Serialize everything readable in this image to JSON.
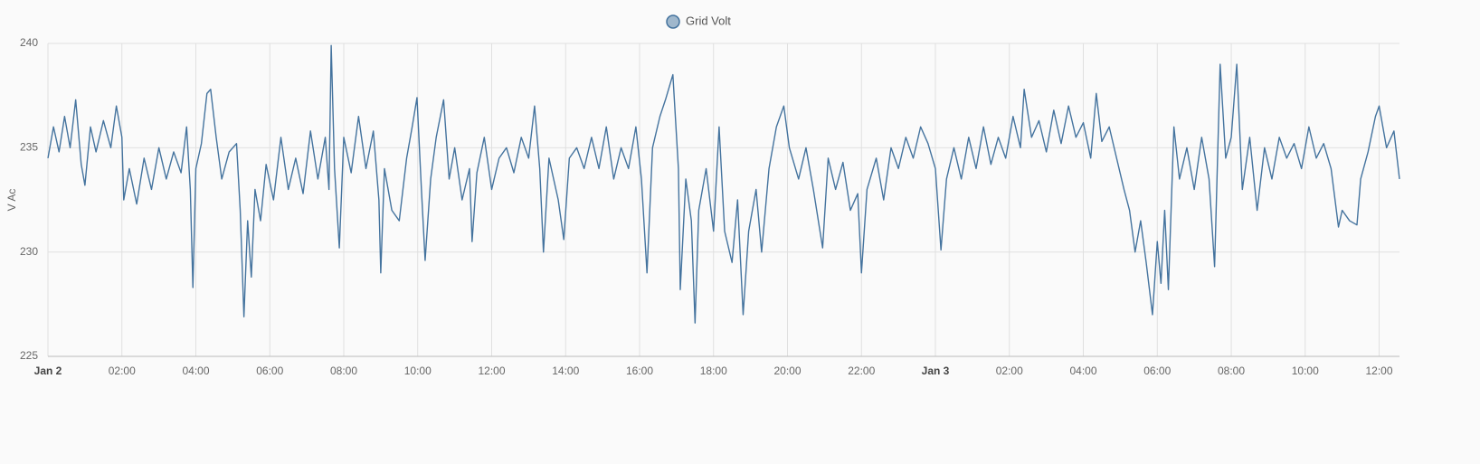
{
  "chart_data": {
    "type": "line",
    "y_label": "V Ac",
    "xlim": [
      0,
      36.55
    ],
    "ylim": [
      225,
      240
    ],
    "yticks": [
      225,
      230,
      235,
      240
    ],
    "xticks": [
      {
        "value": 0,
        "label": "Jan 2"
      },
      {
        "value": 2,
        "label": "02:00"
      },
      {
        "value": 4,
        "label": "04:00"
      },
      {
        "value": 6,
        "label": "06:00"
      },
      {
        "value": 8,
        "label": "08:00"
      },
      {
        "value": 10,
        "label": "10:00"
      },
      {
        "value": 12,
        "label": "12:00"
      },
      {
        "value": 14,
        "label": "14:00"
      },
      {
        "value": 16,
        "label": "16:00"
      },
      {
        "value": 18,
        "label": "18:00"
      },
      {
        "value": 20,
        "label": "20:00"
      },
      {
        "value": 22,
        "label": "22:00"
      },
      {
        "value": 24,
        "label": "Jan 3"
      },
      {
        "value": 26,
        "label": "02:00"
      },
      {
        "value": 28,
        "label": "04:00"
      },
      {
        "value": 30,
        "label": "06:00"
      },
      {
        "value": 32,
        "label": "08:00"
      },
      {
        "value": 34,
        "label": "10:00"
      },
      {
        "value": 36,
        "label": "12:00"
      }
    ],
    "grid": true,
    "legend_position": "top",
    "x": [
      0,
      0.15,
      0.3,
      0.45,
      0.6,
      0.75,
      0.9,
      1.0,
      1.15,
      1.3,
      1.5,
      1.7,
      1.85,
      2.0,
      2.05,
      2.2,
      2.4,
      2.6,
      2.8,
      3.0,
      3.2,
      3.4,
      3.6,
      3.75,
      3.85,
      3.92,
      4.0,
      4.15,
      4.3,
      4.4,
      4.55,
      4.7,
      4.9,
      5.1,
      5.2,
      5.3,
      5.4,
      5.5,
      5.6,
      5.75,
      5.9,
      6.1,
      6.3,
      6.5,
      6.7,
      6.9,
      7.1,
      7.3,
      7.5,
      7.6,
      7.66,
      7.75,
      7.88,
      8.0,
      8.2,
      8.4,
      8.6,
      8.8,
      8.95,
      9.0,
      9.1,
      9.3,
      9.5,
      9.7,
      9.85,
      9.98,
      10.1,
      10.2,
      10.35,
      10.5,
      10.7,
      10.85,
      11.0,
      11.2,
      11.4,
      11.47,
      11.6,
      11.8,
      12.0,
      12.2,
      12.4,
      12.6,
      12.8,
      13.0,
      13.16,
      13.3,
      13.4,
      13.55,
      13.8,
      13.95,
      14.1,
      14.3,
      14.5,
      14.7,
      14.9,
      15.1,
      15.3,
      15.5,
      15.7,
      15.9,
      16.05,
      16.2,
      16.35,
      16.55,
      16.7,
      16.9,
      17.05,
      17.1,
      17.25,
      17.4,
      17.5,
      17.6,
      17.8,
      18.0,
      18.15,
      18.3,
      18.5,
      18.65,
      18.8,
      18.95,
      19.15,
      19.3,
      19.5,
      19.7,
      19.9,
      20.05,
      20.3,
      20.5,
      20.7,
      20.95,
      21.1,
      21.3,
      21.5,
      21.7,
      21.9,
      22.0,
      22.15,
      22.4,
      22.6,
      22.8,
      23.0,
      23.2,
      23.4,
      23.6,
      23.8,
      24.0,
      24.15,
      24.3,
      24.5,
      24.7,
      24.9,
      25.1,
      25.3,
      25.5,
      25.7,
      25.9,
      26.1,
      26.3,
      26.4,
      26.6,
      26.8,
      27.0,
      27.2,
      27.4,
      27.6,
      27.8,
      28.0,
      28.2,
      28.35,
      28.5,
      28.7,
      28.9,
      29.1,
      29.25,
      29.4,
      29.55,
      29.7,
      29.87,
      30.0,
      30.1,
      30.2,
      30.3,
      30.45,
      30.6,
      30.8,
      31.0,
      31.2,
      31.4,
      31.55,
      31.7,
      31.85,
      32.0,
      32.15,
      32.3,
      32.5,
      32.7,
      32.9,
      33.1,
      33.3,
      33.5,
      33.7,
      33.9,
      34.1,
      34.3,
      34.5,
      34.7,
      34.9,
      35.0,
      35.2,
      35.4,
      35.5,
      35.7,
      35.9,
      36.0,
      36.2,
      36.4,
      36.55
    ],
    "series": [
      {
        "name": "Grid Volt",
        "color": "#44739e",
        "values": [
          234.5,
          236,
          234.8,
          236.5,
          235,
          237.3,
          234.2,
          233.2,
          236,
          234.8,
          236.3,
          235,
          237,
          235.5,
          232.5,
          234,
          232.3,
          234.5,
          233,
          235,
          233.5,
          234.8,
          233.8,
          236,
          233,
          228.3,
          234,
          235.2,
          237.6,
          237.8,
          235.5,
          233.5,
          234.8,
          235.2,
          232,
          226.9,
          231.5,
          228.8,
          233,
          231.5,
          234.2,
          232.5,
          235.5,
          233,
          234.5,
          232.8,
          235.8,
          233.5,
          235.5,
          233,
          239.9,
          234,
          230.2,
          235.5,
          233.8,
          236.5,
          234,
          235.8,
          232.5,
          229,
          234,
          232,
          231.5,
          234.5,
          236,
          237.4,
          233,
          229.6,
          233.5,
          235.5,
          237.3,
          233.5,
          235,
          232.5,
          234,
          230.5,
          233.8,
          235.5,
          233,
          234.5,
          235,
          233.8,
          235.5,
          234.5,
          237,
          234,
          230,
          234.5,
          232.5,
          230.6,
          234.5,
          235,
          234,
          235.5,
          234,
          236,
          233.5,
          235,
          234,
          236,
          233.5,
          229,
          235,
          236.5,
          237.3,
          238.5,
          234,
          228.2,
          233.5,
          231.5,
          226.6,
          232,
          234,
          231,
          236,
          231,
          229.5,
          232.5,
          227,
          231,
          233,
          230,
          234,
          236,
          237,
          235,
          233.5,
          235,
          233,
          230.2,
          234.5,
          233,
          234.3,
          232,
          232.8,
          229,
          233,
          234.5,
          232.5,
          235,
          234,
          235.5,
          234.5,
          236,
          235.2,
          234,
          230.1,
          233.5,
          235,
          233.5,
          235.5,
          234,
          236,
          234.2,
          235.5,
          234.5,
          236.5,
          235,
          237.8,
          235.5,
          236.3,
          234.8,
          236.8,
          235.2,
          237,
          235.5,
          236.2,
          234.5,
          237.6,
          235.3,
          236,
          234.5,
          233,
          232,
          230,
          231.5,
          229.5,
          227,
          230.5,
          228.5,
          232,
          228.2,
          236,
          233.5,
          235,
          233,
          235.5,
          233.5,
          229.3,
          239,
          234.5,
          235.5,
          239,
          233,
          235.5,
          232,
          235,
          233.5,
          235.5,
          234.5,
          235.2,
          234,
          236,
          234.5,
          235.2,
          234,
          231.2,
          232,
          231.5,
          231.3,
          233.5,
          234.8,
          236.5,
          237,
          235,
          235.8,
          233.5
        ]
      }
    ]
  }
}
